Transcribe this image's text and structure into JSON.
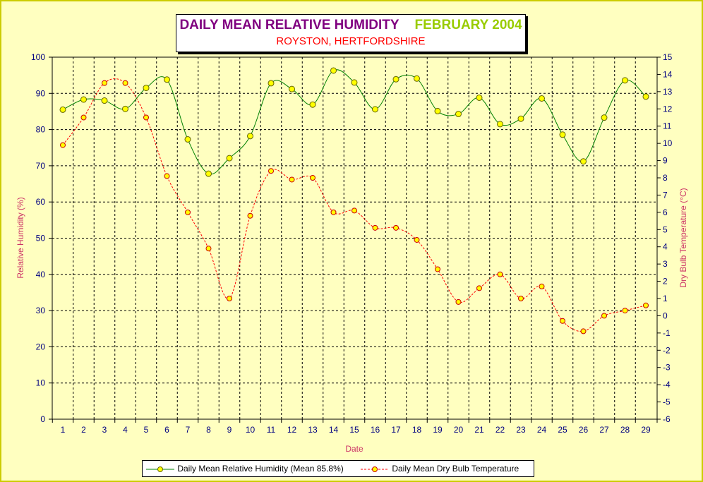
{
  "chart_data": {
    "type": "line",
    "title": "DAILY MEAN RELATIVE HUMIDITY",
    "title_date": "FEBRUARY 2004",
    "subtitle": "ROYSTON, HERTFORDSHIRE",
    "xlabel": "Date",
    "ylabel": "Relative Humidity (%)",
    "y2label": "Dry Bulb Temperature (°C)",
    "x": [
      1,
      2,
      3,
      4,
      5,
      6,
      7,
      8,
      9,
      10,
      11,
      12,
      13,
      14,
      15,
      16,
      17,
      18,
      19,
      20,
      21,
      22,
      23,
      24,
      25,
      26,
      27,
      28,
      29
    ],
    "ylim": [
      0,
      100
    ],
    "yticks": [
      0,
      10,
      20,
      30,
      40,
      50,
      60,
      70,
      80,
      90,
      100
    ],
    "y2lim": [
      -6,
      15
    ],
    "y2ticks": [
      -6,
      -5,
      -4,
      -3,
      -2,
      -1,
      0,
      1,
      2,
      3,
      4,
      5,
      6,
      7,
      8,
      9,
      10,
      11,
      12,
      13,
      14,
      15
    ],
    "grid": true,
    "legend_position": "bottom",
    "series": [
      {
        "name": "Daily Mean Relative Humidity (Mean 85.8%)",
        "axis": "left",
        "color": "#008000",
        "marker_color": "#ffff00",
        "line_style": "solid",
        "values": [
          85.5,
          88.3,
          88.0,
          85.7,
          91.5,
          93.8,
          77.3,
          67.8,
          72.1,
          78.2,
          92.8,
          91.2,
          86.9,
          96.3,
          93.0,
          85.6,
          93.9,
          94.1,
          85.1,
          84.3,
          88.8,
          81.5,
          83.0,
          88.6,
          78.6,
          71.2,
          83.3,
          93.6,
          89.1
        ]
      },
      {
        "name": "Daily Mean Dry Bulb Temperature",
        "axis": "right",
        "color": "#ff0000",
        "marker_color": "#ffff00",
        "line_style": "dashed",
        "values": [
          9.9,
          11.5,
          13.5,
          13.5,
          11.5,
          8.1,
          6.0,
          3.9,
          1.0,
          5.8,
          8.4,
          7.9,
          8.0,
          6.0,
          6.1,
          5.1,
          5.1,
          4.4,
          2.7,
          0.8,
          1.6,
          2.4,
          1.0,
          1.7,
          -0.3,
          -0.9,
          0.0,
          0.3,
          0.6
        ]
      }
    ]
  }
}
